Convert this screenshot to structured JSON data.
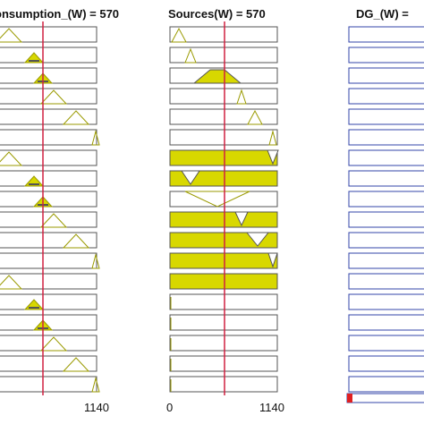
{
  "columns": [
    {
      "title": "onsumption_(W) = 570",
      "axis_labels": [
        "1140"
      ]
    },
    {
      "title": "Sources(W) = 570",
      "axis_labels": [
        "0",
        "1140"
      ]
    },
    {
      "title": "DG_(W) ="
    }
  ]
}
